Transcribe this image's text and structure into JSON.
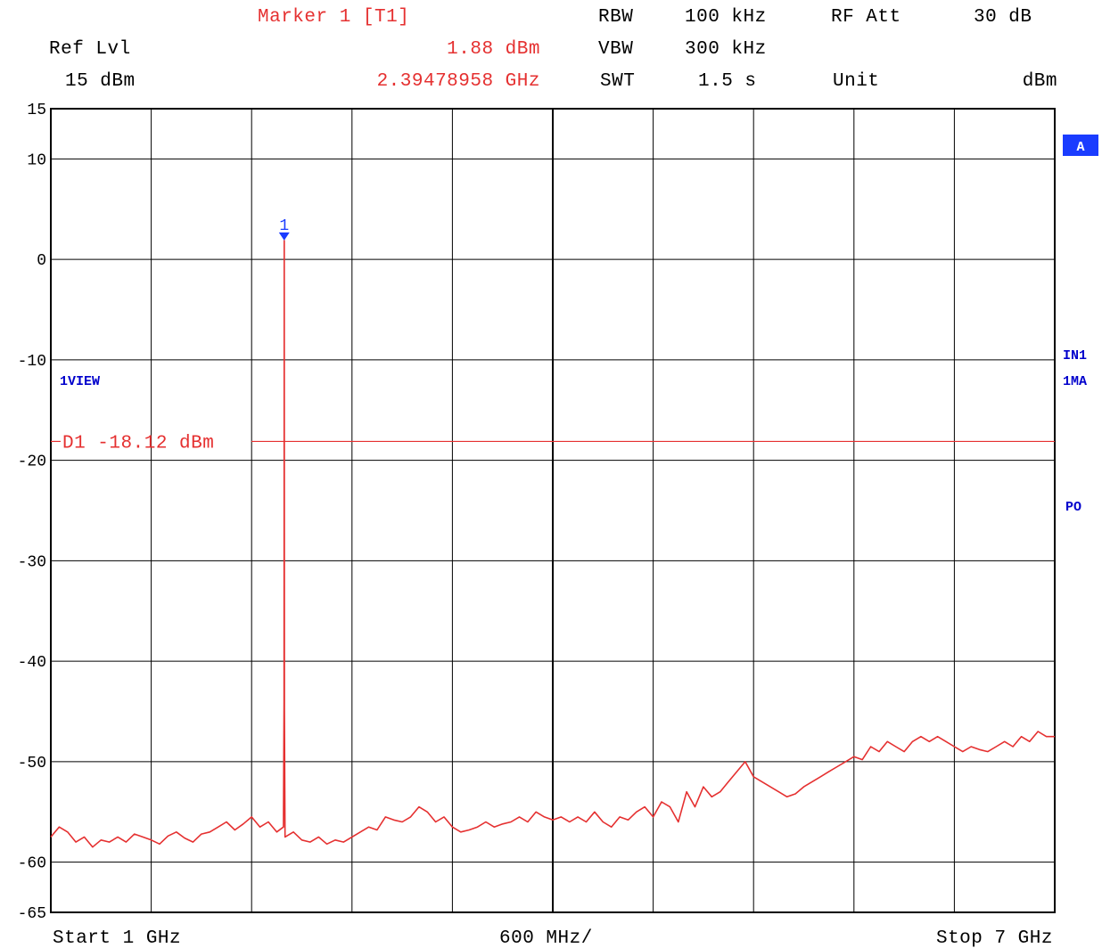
{
  "header": {
    "marker_label": "Marker 1 [T1]",
    "ref_lvl_label": "Ref Lvl",
    "ref_lvl_value": "15 dBm",
    "marker_level": "1.88 dBm",
    "marker_freq": "2.39478958 GHz",
    "rbw_label": "RBW",
    "rbw_value": "100 kHz",
    "vbw_label": "VBW",
    "vbw_value": "300 kHz",
    "swt_label": "SWT",
    "swt_value": "1.5 s",
    "rfatt_label": "RF Att",
    "rfatt_value": "30 dB",
    "unit_label": "Unit",
    "unit_value": "dBm"
  },
  "side_labels": {
    "trace_a": "A",
    "view": "1VIEW",
    "in1": "IN1",
    "ma": "1MA",
    "po": "PO"
  },
  "footer": {
    "start": "Start 1 GHz",
    "span_div": "600 MHz/",
    "stop": "Stop 7 GHz"
  },
  "colors": {
    "trace": "#e53030",
    "grid": "#000000",
    "marker": "#1a3cff",
    "side_label": "#0000cc"
  },
  "chart_data": {
    "type": "line",
    "xlim": [
      1,
      7
    ],
    "x_unit": "GHz",
    "ylim": [
      -65,
      15
    ],
    "y_ticks": [
      15,
      10,
      0,
      -10,
      -20,
      -30,
      -40,
      -50,
      -60,
      -65
    ],
    "y_tick_labels": [
      "15",
      "10",
      "0",
      "-10",
      "-20",
      "-30",
      "-40",
      "-50",
      "-60",
      "-65"
    ],
    "grid": true,
    "display_line": {
      "label": "D1 -18.12 dBm",
      "value": -18.12
    },
    "marker": {
      "label": "1",
      "x": 2.39478958,
      "y": 1.88
    },
    "series": [
      {
        "x": [
          1.0,
          1.05,
          1.1,
          1.15,
          1.2,
          1.25,
          1.3,
          1.35,
          1.4,
          1.45,
          1.5,
          1.55,
          1.6,
          1.65,
          1.7,
          1.75,
          1.8,
          1.85,
          1.9,
          1.95,
          2.0,
          2.05,
          2.1,
          2.15,
          2.2,
          2.25,
          2.3,
          2.35,
          2.39,
          2.394,
          2.395,
          2.396,
          2.4,
          2.45,
          2.5,
          2.55,
          2.6,
          2.65,
          2.7,
          2.75,
          2.8,
          2.85,
          2.9,
          2.95,
          3.0,
          3.05,
          3.1,
          3.15,
          3.2,
          3.25,
          3.3,
          3.35,
          3.4,
          3.45,
          3.5,
          3.55,
          3.6,
          3.65,
          3.7,
          3.75,
          3.8,
          3.85,
          3.9,
          3.95,
          4.0,
          4.05,
          4.1,
          4.15,
          4.2,
          4.25,
          4.3,
          4.35,
          4.4,
          4.45,
          4.5,
          4.55,
          4.6,
          4.65,
          4.7,
          4.75,
          4.8,
          4.85,
          4.9,
          4.95,
          5.0,
          5.05,
          5.1,
          5.15,
          5.2,
          5.25,
          5.3,
          5.35,
          5.4,
          5.45,
          5.5,
          5.55,
          5.6,
          5.65,
          5.7,
          5.75,
          5.8,
          5.85,
          5.9,
          5.95,
          6.0,
          6.05,
          6.1,
          6.15,
          6.2,
          6.25,
          6.3,
          6.35,
          6.4,
          6.45,
          6.5,
          6.55,
          6.6,
          6.65,
          6.7,
          6.75,
          6.8,
          6.85,
          6.9,
          6.95,
          7.0
        ],
        "y": [
          -57.5,
          -56.5,
          -57.0,
          -58.0,
          -57.5,
          -58.5,
          -57.8,
          -58.0,
          -57.5,
          -58.0,
          -57.2,
          -57.5,
          -57.8,
          -58.2,
          -57.4,
          -57.0,
          -57.6,
          -58.0,
          -57.2,
          -57.0,
          -56.5,
          -56.0,
          -56.8,
          -56.2,
          -55.5,
          -56.5,
          -56.0,
          -57.0,
          -56.5,
          -44.0,
          1.88,
          -45.0,
          -57.5,
          -57.0,
          -57.8,
          -58.0,
          -57.5,
          -58.2,
          -57.8,
          -58.0,
          -57.5,
          -57.0,
          -56.5,
          -56.8,
          -55.5,
          -55.8,
          -56.0,
          -55.5,
          -54.5,
          -55.0,
          -56.0,
          -55.5,
          -56.5,
          -57.0,
          -56.8,
          -56.5,
          -56.0,
          -56.5,
          -56.2,
          -56.0,
          -55.5,
          -56.0,
          -55.0,
          -55.5,
          -55.8,
          -55.5,
          -56.0,
          -55.5,
          -56.0,
          -55.0,
          -56.0,
          -56.5,
          -55.5,
          -55.8,
          -55.0,
          -54.5,
          -55.5,
          -54.0,
          -54.5,
          -56.0,
          -53.0,
          -54.5,
          -52.5,
          -53.5,
          -53.0,
          -52.0,
          -51.0,
          -50.0,
          -51.5,
          -52.0,
          -52.5,
          -53.0,
          -53.5,
          -53.2,
          -52.5,
          -52.0,
          -51.5,
          -51.0,
          -50.5,
          -50.0,
          -49.5,
          -49.8,
          -48.5,
          -49.0,
          -48.0,
          -48.5,
          -49.0,
          -48.0,
          -47.5,
          -48.0,
          -47.5,
          -48.0,
          -48.5,
          -49.0,
          -48.5,
          -48.8,
          -49.0,
          -48.5,
          -48.0,
          -48.5,
          -47.5,
          -48.0,
          -47.0,
          -47.5,
          -47.5
        ]
      }
    ]
  }
}
